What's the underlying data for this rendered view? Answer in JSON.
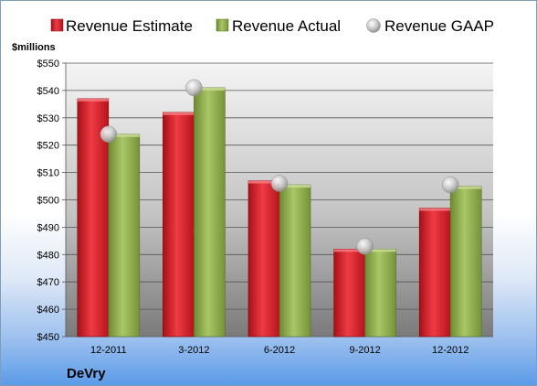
{
  "company": "DeVry",
  "colors": {
    "estimate": "#d9202a",
    "actual": "#8fb04a",
    "gaap": "#c8c8c8"
  },
  "chart_data": {
    "type": "bar",
    "ylabel": "$millions",
    "ylim": [
      450,
      550
    ],
    "ytick_step": 10,
    "ytick_prefix": "$",
    "grid": true,
    "legend_position": "top",
    "categories": [
      "12-2011",
      "3-2012",
      "6-2012",
      "9-2012",
      "12-2012"
    ],
    "series": [
      {
        "name": "Revenue Estimate",
        "kind": "bar",
        "values": [
          537,
          532,
          507,
          482,
          497
        ]
      },
      {
        "name": "Revenue Actual",
        "kind": "bar",
        "values": [
          524,
          541,
          505.5,
          482,
          505
        ]
      },
      {
        "name": "Revenue GAAP",
        "kind": "marker",
        "values": [
          524,
          541,
          506,
          483,
          505.5
        ]
      }
    ]
  }
}
